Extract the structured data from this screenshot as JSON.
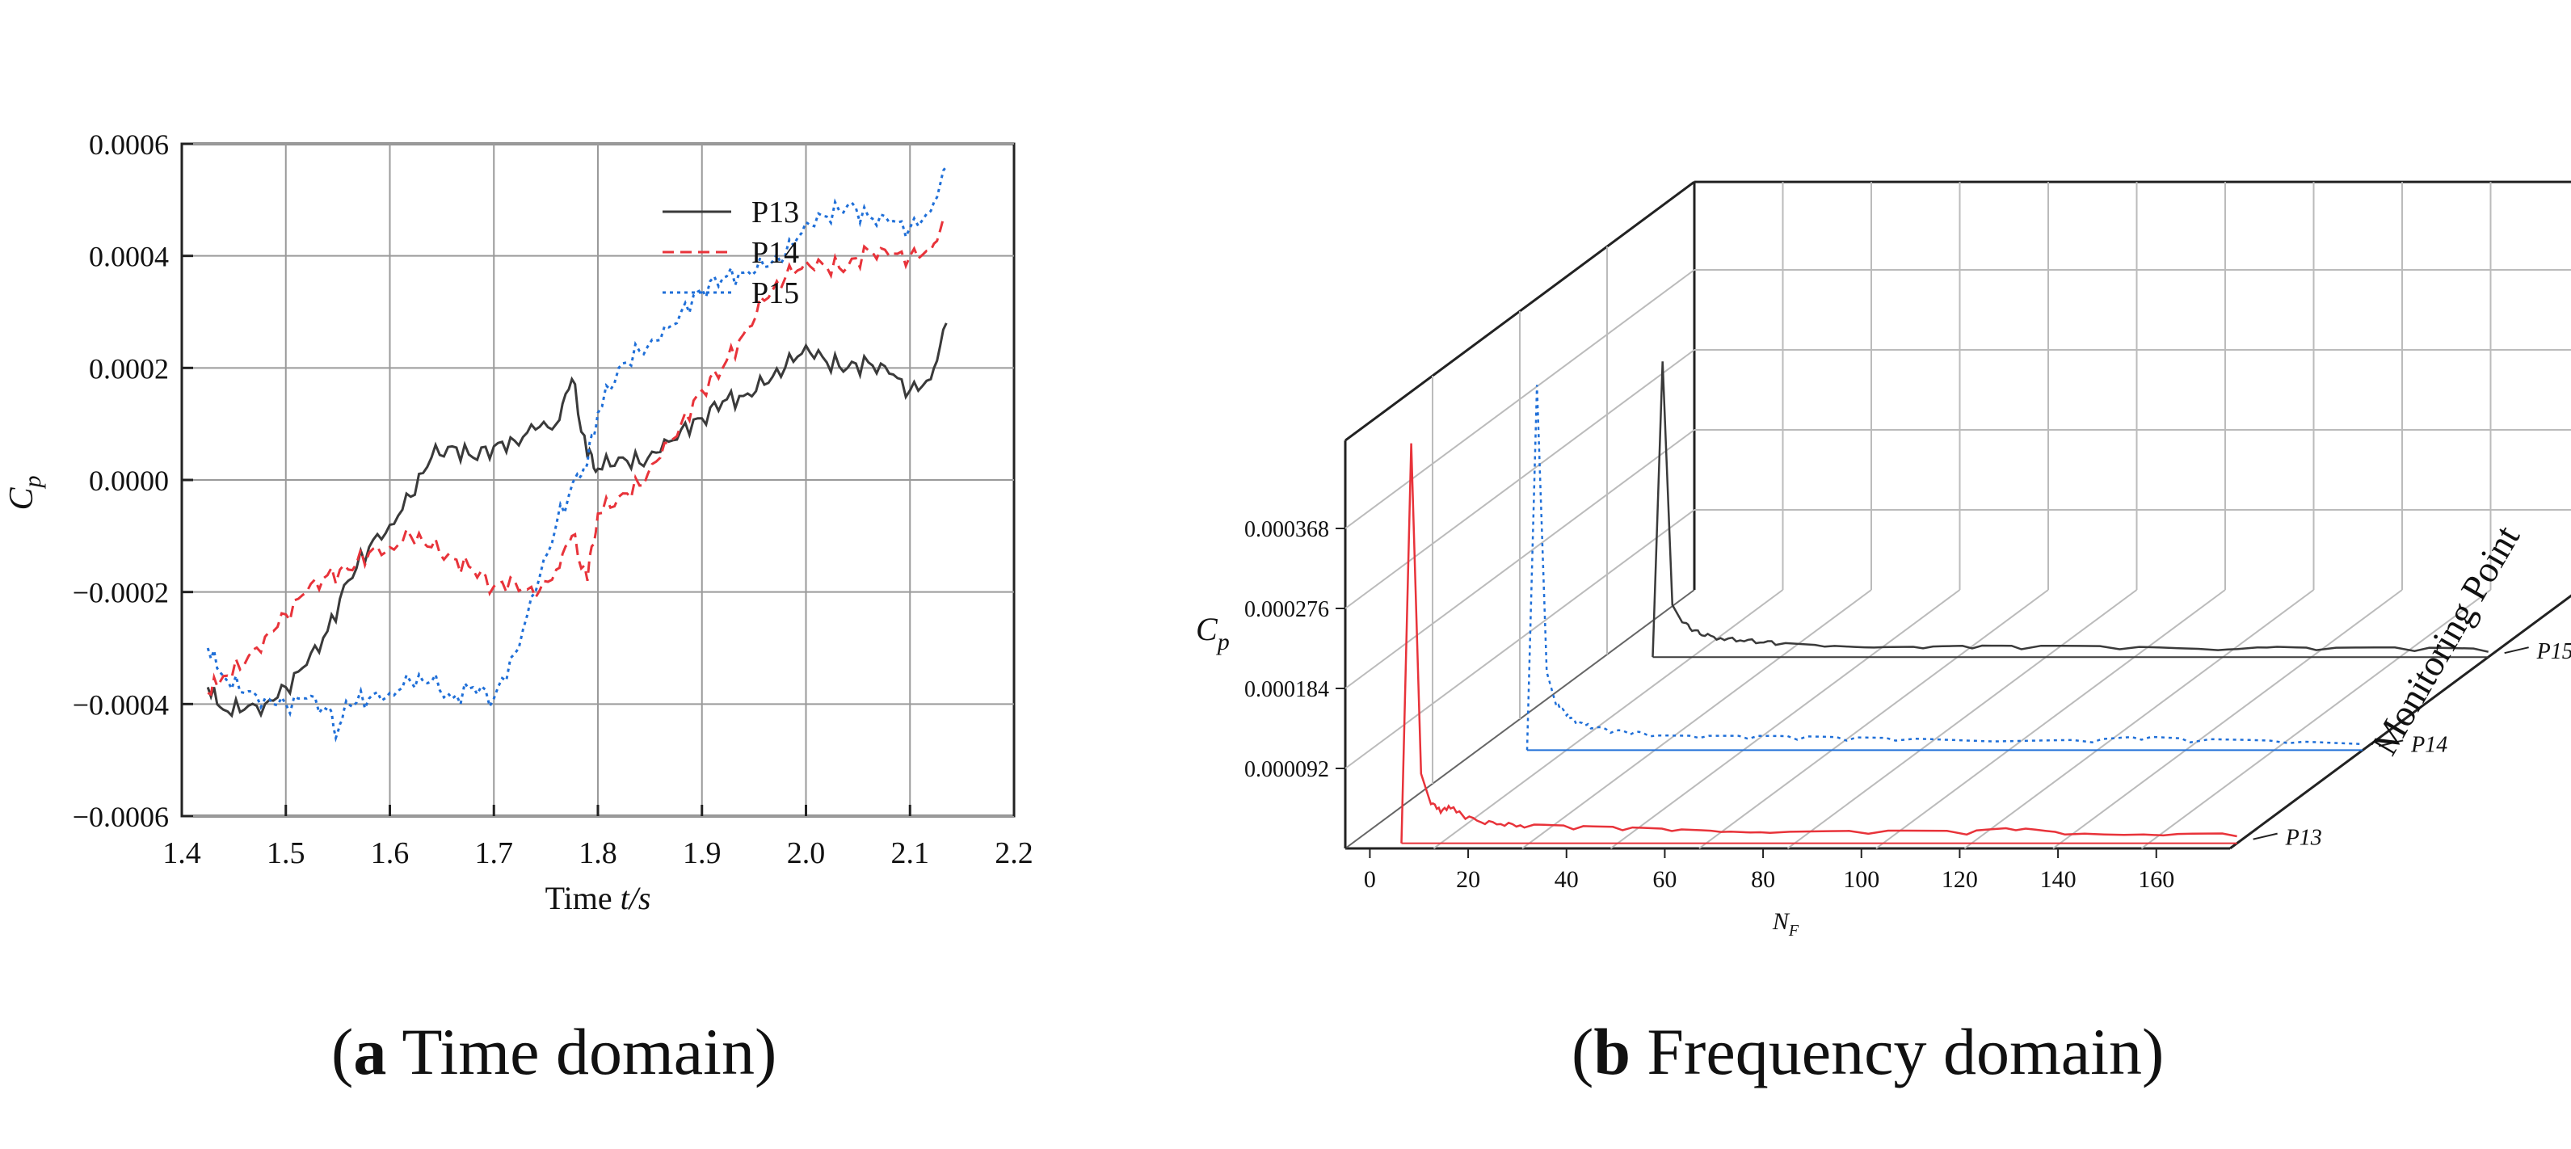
{
  "chart_data": [
    {
      "type": "line",
      "panel": "a",
      "xlabel_prefix": "Time ",
      "xlabel_var": "t/s",
      "ylabel_main": "C",
      "ylabel_sub": "p",
      "xlim": [
        1.4,
        2.2
      ],
      "ylim": [
        -0.0006,
        0.0006
      ],
      "xticks": [
        1.4,
        1.5,
        1.6,
        1.7,
        1.8,
        1.9,
        2.0,
        2.1,
        2.2
      ],
      "xtick_labels": [
        "1.4",
        "1.5",
        "1.6",
        "1.7",
        "1.8",
        "1.9",
        "2.0",
        "2.1",
        "2.2"
      ],
      "yticks": [
        -0.0006,
        -0.0004,
        -0.0002,
        0.0,
        0.0002,
        0.0004,
        0.0006
      ],
      "ytick_labels": [
        "−0.0006",
        "−0.0004",
        "−0.0002",
        "0.0000",
        "0.0002",
        "0.0004",
        "0.0006"
      ],
      "legend_position": "top-right",
      "grid": true,
      "series": [
        {
          "name": "P13",
          "color": "#3a3a3a",
          "style": "solid",
          "x": [
            1.425,
            1.44,
            1.46,
            1.48,
            1.5,
            1.52,
            1.54,
            1.56,
            1.58,
            1.6,
            1.62,
            1.64,
            1.66,
            1.68,
            1.7,
            1.72,
            1.74,
            1.76,
            1.775,
            1.79,
            1.8,
            1.82,
            1.84,
            1.86,
            1.88,
            1.9,
            1.92,
            1.94,
            1.96,
            1.98,
            2.0,
            2.02,
            2.04,
            2.06,
            2.08,
            2.1,
            2.12,
            2.135
          ],
          "y": [
            -0.00037,
            -0.00041,
            -0.00041,
            -0.0004,
            -0.00037,
            -0.00033,
            -0.00027,
            -0.00018,
            -0.00012,
            -8e-05,
            -3e-05,
            4e-05,
            6e-05,
            4e-05,
            6e-05,
            7e-05,
            9e-05,
            0.0001,
            0.00018,
            4e-05,
            2e-05,
            4e-05,
            3e-05,
            5e-05,
            9e-05,
            0.00011,
            0.00014,
            0.00015,
            0.00017,
            0.0002,
            0.00024,
            0.00021,
            0.0002,
            0.00021,
            0.00019,
            0.00016,
            0.00018,
            0.00028
          ]
        },
        {
          "name": "P14",
          "color": "#e8333a",
          "style": "dashed",
          "x": [
            1.425,
            1.44,
            1.46,
            1.48,
            1.5,
            1.52,
            1.54,
            1.56,
            1.58,
            1.6,
            1.62,
            1.64,
            1.66,
            1.68,
            1.7,
            1.72,
            1.74,
            1.76,
            1.775,
            1.79,
            1.8,
            1.82,
            1.84,
            1.86,
            1.88,
            1.9,
            1.92,
            1.94,
            1.96,
            1.98,
            2.0,
            2.02,
            2.04,
            2.06,
            2.08,
            2.1,
            2.12,
            2.135
          ],
          "y": [
            -0.00038,
            -0.00035,
            -0.00033,
            -0.00028,
            -0.00024,
            -0.0002,
            -0.00017,
            -0.00016,
            -0.00013,
            -0.00012,
            -0.0001,
            -0.00012,
            -0.00014,
            -0.00016,
            -0.00019,
            -0.00018,
            -0.00021,
            -0.00016,
            -0.0001,
            -0.00018,
            -6e-05,
            -3e-05,
            -1e-05,
            4e-05,
            0.0001,
            0.00016,
            0.0002,
            0.00026,
            0.00032,
            0.00036,
            0.00039,
            0.00038,
            0.00038,
            0.00041,
            0.0004,
            0.0004,
            0.00041,
            0.00047
          ]
        },
        {
          "name": "P15",
          "color": "#1f6fd8",
          "style": "dotted",
          "x": [
            1.425,
            1.44,
            1.46,
            1.48,
            1.5,
            1.52,
            1.54,
            1.55,
            1.56,
            1.58,
            1.6,
            1.62,
            1.64,
            1.66,
            1.68,
            1.7,
            1.72,
            1.74,
            1.76,
            1.78,
            1.79,
            1.8,
            1.82,
            1.84,
            1.86,
            1.88,
            1.9,
            1.92,
            1.94,
            1.96,
            1.98,
            2.0,
            2.02,
            2.04,
            2.06,
            2.08,
            2.1,
            2.12,
            2.135
          ],
          "y": [
            -0.0003,
            -0.00035,
            -0.00038,
            -0.00039,
            -0.0004,
            -0.00039,
            -0.00041,
            -0.00045,
            -0.0004,
            -0.00039,
            -0.00038,
            -0.00036,
            -0.00036,
            -0.00039,
            -0.00037,
            -0.00039,
            -0.00031,
            -0.0002,
            -8e-05,
            1e-05,
            3e-05,
            0.00012,
            0.0002,
            0.00023,
            0.00025,
            0.0003,
            0.00034,
            0.00036,
            0.00037,
            0.00038,
            0.0004,
            0.00046,
            0.00047,
            0.00049,
            0.00047,
            0.00046,
            0.00045,
            0.00048,
            0.00056
          ]
        }
      ]
    },
    {
      "type": "waterfall3d",
      "panel": "b",
      "xlabel": "N",
      "xlabel_sub": "F",
      "ylabel_main": "C",
      "ylabel_sub": "p",
      "depth_label": "Monitoring Point",
      "xlim": [
        -5,
        175
      ],
      "zlim": [
        0,
        0.00046
      ],
      "xticks": [
        0,
        20,
        40,
        60,
        80,
        100,
        120,
        140,
        160
      ],
      "xtick_labels": [
        "0",
        "20",
        "40",
        "60",
        "80",
        "100",
        "120",
        "140",
        "160"
      ],
      "zticks": [
        9.2e-05,
        0.000184,
        0.000276,
        0.000368
      ],
      "ztick_labels": [
        "0.000092",
        "0.000184",
        "0.000276",
        "0.000368"
      ],
      "depth_ticks": [
        "P13",
        "P14",
        "P15"
      ],
      "series": [
        {
          "name": "P13",
          "color": "#e8333a",
          "style": "solid",
          "x": [
            5,
            7,
            9,
            11,
            13,
            15,
            18,
            22,
            26,
            30,
            40,
            50,
            60,
            70,
            80,
            100,
            120,
            130,
            140,
            160,
            175
          ],
          "y": [
            0,
            0.00046,
            8e-05,
            4.5e-05,
            3.5e-05,
            4e-05,
            2.8e-05,
            2.2e-05,
            2e-05,
            1.8e-05,
            1.6e-05,
            1.5e-05,
            1.4e-05,
            1.3e-05,
            1.2e-05,
            1.1e-05,
            1e-05,
            1.5e-05,
            1e-05,
            9e-06,
            8e-06
          ]
        },
        {
          "name": "P14",
          "color": "#1f6fd8",
          "style": "dotted",
          "x": [
            5,
            7,
            9,
            11,
            13,
            15,
            18,
            22,
            26,
            30,
            40,
            50,
            60,
            70,
            80,
            100,
            120,
            130,
            140,
            160,
            175
          ],
          "y": [
            0,
            0.00042,
            9e-05,
            5e-05,
            4e-05,
            3e-05,
            2.5e-05,
            2e-05,
            1.8e-05,
            1.6e-05,
            1.4e-05,
            1.3e-05,
            1.2e-05,
            1.1e-05,
            1.1e-05,
            1e-05,
            9e-06,
            1.2e-05,
            9e-06,
            8e-06,
            7e-06
          ]
        },
        {
          "name": "P15",
          "color": "#3a3a3a",
          "style": "solid",
          "x": [
            5,
            7,
            9,
            11,
            13,
            15,
            18,
            22,
            26,
            30,
            40,
            50,
            60,
            70,
            80,
            100,
            120,
            130,
            140,
            160,
            175
          ],
          "y": [
            0,
            0.00034,
            6e-05,
            4e-05,
            3e-05,
            2.5e-05,
            2e-05,
            1.8e-05,
            1.6e-05,
            1.4e-05,
            1.2e-05,
            1.1e-05,
            1e-05,
            1e-05,
            9e-06,
            9e-06,
            8e-06,
            1.1e-05,
            8e-06,
            7e-06,
            6e-06
          ]
        }
      ]
    }
  ],
  "captions": {
    "a_letter": "a",
    "a_text": " Time domain",
    "b_letter": "b",
    "b_text": " Frequency domain"
  }
}
